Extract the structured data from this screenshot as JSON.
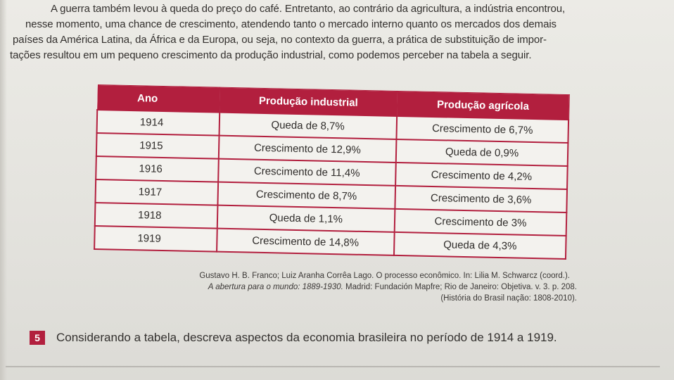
{
  "intro_lines": [
    "A guerra também levou à queda do preço do café. Entretanto, ao contrário da agricultura, a indústria encontrou,",
    "nesse momento, uma chance de crescimento, atendendo tanto o mercado interno quanto os mercados dos demais",
    "países da América Latina, da África e da Europa, ou seja, no contexto da guerra, a prática de substituição de impor-",
    "tações resultou em um pequeno crescimento da produção industrial, como podemos perceber na tabela a seguir."
  ],
  "table": {
    "headers": [
      "Ano",
      "Produção industrial",
      "Produção agrícola"
    ],
    "rows": [
      [
        "1914",
        "Queda de 8,7%",
        "Crescimento de 6,7%"
      ],
      [
        "1915",
        "Crescimento de 12,9%",
        "Queda de 0,9%"
      ],
      [
        "1916",
        "Crescimento de 11,4%",
        "Crescimento de 4,2%"
      ],
      [
        "1917",
        "Crescimento de 8,7%",
        "Crescimento de 3,6%"
      ],
      [
        "1918",
        "Queda de 1,1%",
        "Crescimento de 3%"
      ],
      [
        "1919",
        "Crescimento de 14,8%",
        "Queda de 4,3%"
      ]
    ],
    "accent_color": "#b21f3e"
  },
  "source": {
    "line1": "Gustavo H. B. Franco; Luiz Aranha Corrêa Lago. O processo econômico. In: Lilia M. Schwarcz (coord.).",
    "line2_book": "A abertura para o mundo: 1889-1930.",
    "line2_rest": " Madrid: Fundación Mapfre; Rio de Janeiro: Objetiva. v. 3. p. 208.",
    "line3": "(História do Brasil nação: 1808-2010)."
  },
  "question": {
    "number": "5",
    "text": "Considerando a tabela, descreva aspectos da economia brasileira no período de 1914 a 1919."
  }
}
